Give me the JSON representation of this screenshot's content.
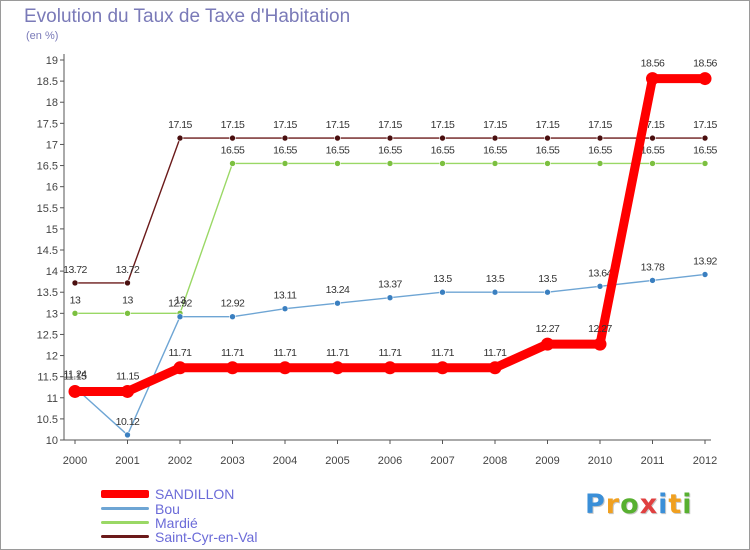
{
  "title": "Evolution du Taux de Taxe d'Habitation",
  "unit": "(en %)",
  "brand": {
    "letters": [
      "P",
      "r",
      "o",
      "x",
      "i",
      "t",
      "i"
    ],
    "colors": [
      "#3a8fd8",
      "#f0a020",
      "#58b030",
      "#e04040",
      "#3a8fd8",
      "#f0a020",
      "#58b030"
    ]
  },
  "chart_data": {
    "type": "line",
    "title": "Evolution du Taux de Taxe d'Habitation",
    "ylabel": "(en %)",
    "xlabel": "",
    "categories": [
      "2000",
      "2001",
      "2002",
      "2003",
      "2004",
      "2005",
      "2006",
      "2007",
      "2008",
      "2009",
      "2010",
      "2011",
      "2012"
    ],
    "ylim": [
      10,
      19
    ],
    "yticks": [
      "10",
      "10.5",
      "11",
      "11.5",
      "12",
      "12.5",
      "13",
      "13.5",
      "14",
      "14.5",
      "15",
      "15.5",
      "16",
      "16.5",
      "17",
      "17.5",
      "18",
      "18.5",
      "19"
    ],
    "grid": false,
    "series": [
      {
        "name": "Saint-Cyr-en-Val",
        "color": "#6b1a1a",
        "dot": "#4a0f0f",
        "values": [
          13.72,
          13.72,
          17.15,
          17.15,
          17.15,
          17.15,
          17.15,
          17.15,
          17.15,
          17.15,
          17.15,
          17.15,
          17.15
        ],
        "labels": [
          "13.72",
          "13.72",
          "17.15",
          "17.15",
          "17.15",
          "17.15",
          "17.15",
          "17.15",
          "17.15",
          "17.15",
          "17.15",
          "17.15",
          "17.15"
        ]
      },
      {
        "name": "Mardié",
        "color": "#9ad865",
        "dot": "#7cc040",
        "values": [
          13,
          13,
          13,
          16.55,
          16.55,
          16.55,
          16.55,
          16.55,
          16.55,
          16.55,
          16.55,
          16.55,
          16.55
        ],
        "labels": [
          "13",
          "13",
          "13",
          "16.55",
          "16.55",
          "16.55",
          "16.55",
          "16.55",
          "16.55",
          "16.55",
          "16.55",
          "16.55",
          "16.55"
        ]
      },
      {
        "name": "Bou",
        "color": "#6ea5d4",
        "dot": "#3a7fc0",
        "values": [
          11.24,
          10.12,
          12.92,
          12.92,
          13.11,
          13.24,
          13.37,
          13.5,
          13.5,
          13.5,
          13.64,
          13.78,
          13.92
        ],
        "labels": [
          "11.24",
          "10.12",
          "12.92",
          "12.92",
          "13.11",
          "13.24",
          "13.37",
          "13.5",
          "13.5",
          "13.5",
          "13.64",
          "13.78",
          "13.92"
        ]
      },
      {
        "name": "SANDILLON",
        "color": "#ff0000",
        "dot": "#ff0000",
        "values": [
          11.15,
          11.15,
          11.71,
          11.71,
          11.71,
          11.71,
          11.71,
          11.71,
          11.71,
          12.27,
          12.27,
          18.56,
          18.56
        ],
        "labels": [
          "11.15",
          "11.15",
          "11.71",
          "11.71",
          "11.71",
          "11.71",
          "11.71",
          "11.71",
          "11.71",
          "12.27",
          "12.27",
          "18.56",
          "18.56"
        ]
      }
    ],
    "legend": [
      "SANDILLON",
      "Bou",
      "Mardié",
      "Saint-Cyr-en-Val"
    ]
  }
}
